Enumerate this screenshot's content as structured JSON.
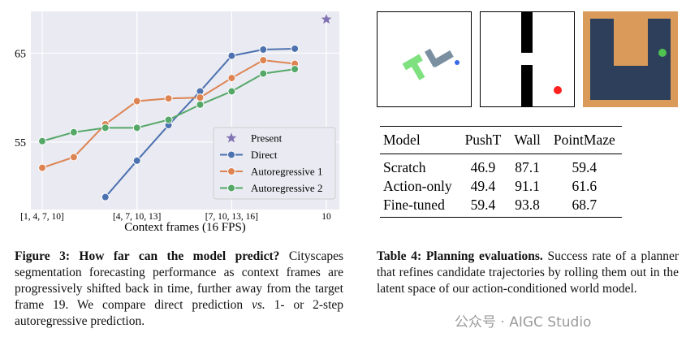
{
  "chart_data": {
    "type": "line",
    "xlabel": "Context frames (16 FPS)",
    "x": [
      1,
      2,
      3,
      4,
      5,
      6,
      7,
      8,
      9,
      10
    ],
    "xlim": [
      0.64,
      10.41
    ],
    "xticks": [
      {
        "value": 1,
        "label": "[1, 4, 7, 10]"
      },
      {
        "value": 4,
        "label": "[4, 7, 10, 13]"
      },
      {
        "value": 7,
        "label": "[7, 10, 13, 16]"
      },
      10
    ],
    "xtick_labels_override": null,
    "ylim": [
      47.4,
      69.7
    ],
    "yticks": [
      55,
      65
    ],
    "grid": true,
    "legend": "lower right",
    "series": [
      {
        "name": "Present",
        "color": "#8172b3",
        "marker": "star",
        "values": [
          null,
          null,
          null,
          null,
          null,
          null,
          null,
          null,
          null,
          68.8
        ]
      },
      {
        "name": "Direct",
        "color": "#4c72b0",
        "marker": "circle",
        "values": [
          null,
          null,
          48.8,
          52.9,
          56.9,
          60.7,
          64.7,
          65.4,
          65.5,
          null
        ]
      },
      {
        "name": "Autoregressive 1",
        "color": "#dd8452",
        "marker": "circle",
        "values": [
          52.1,
          53.3,
          57.0,
          59.6,
          59.9,
          60.0,
          62.2,
          64.2,
          63.8,
          null
        ]
      },
      {
        "name": "Autoregressive 2",
        "color": "#55a868",
        "marker": "circle",
        "values": [
          55.1,
          56.1,
          56.6,
          56.6,
          57.5,
          59.2,
          60.7,
          62.7,
          63.2,
          null
        ]
      }
    ]
  },
  "figure_caption": {
    "title": "Figure 3: How far can the model predict?",
    "text": "Cityscapes segmentation forecasting performance as context frames are progressively shifted back in time, further away from the target frame 19. We compare direct prediction",
    "emphasis": "vs.",
    "text_end": "1- or 2-step autoregressive prediction."
  },
  "table": {
    "header": [
      "Model",
      "PushT",
      "Wall",
      "PointMaze"
    ],
    "rows": [
      [
        "Scratch",
        "46.9",
        "87.1",
        "59.4"
      ],
      [
        "Action-only",
        "49.4",
        "91.1",
        "61.6"
      ],
      [
        "Fine-tuned",
        "59.4",
        "93.8",
        "68.7"
      ]
    ]
  },
  "table_caption": {
    "title": "Table 4: Planning evaluations.",
    "text": "Success rate of a planner that refines candidate trajectories by rolling them out in the latent space of our action-conditioned world model."
  },
  "watermark": "公众号 · AIGC Studio"
}
